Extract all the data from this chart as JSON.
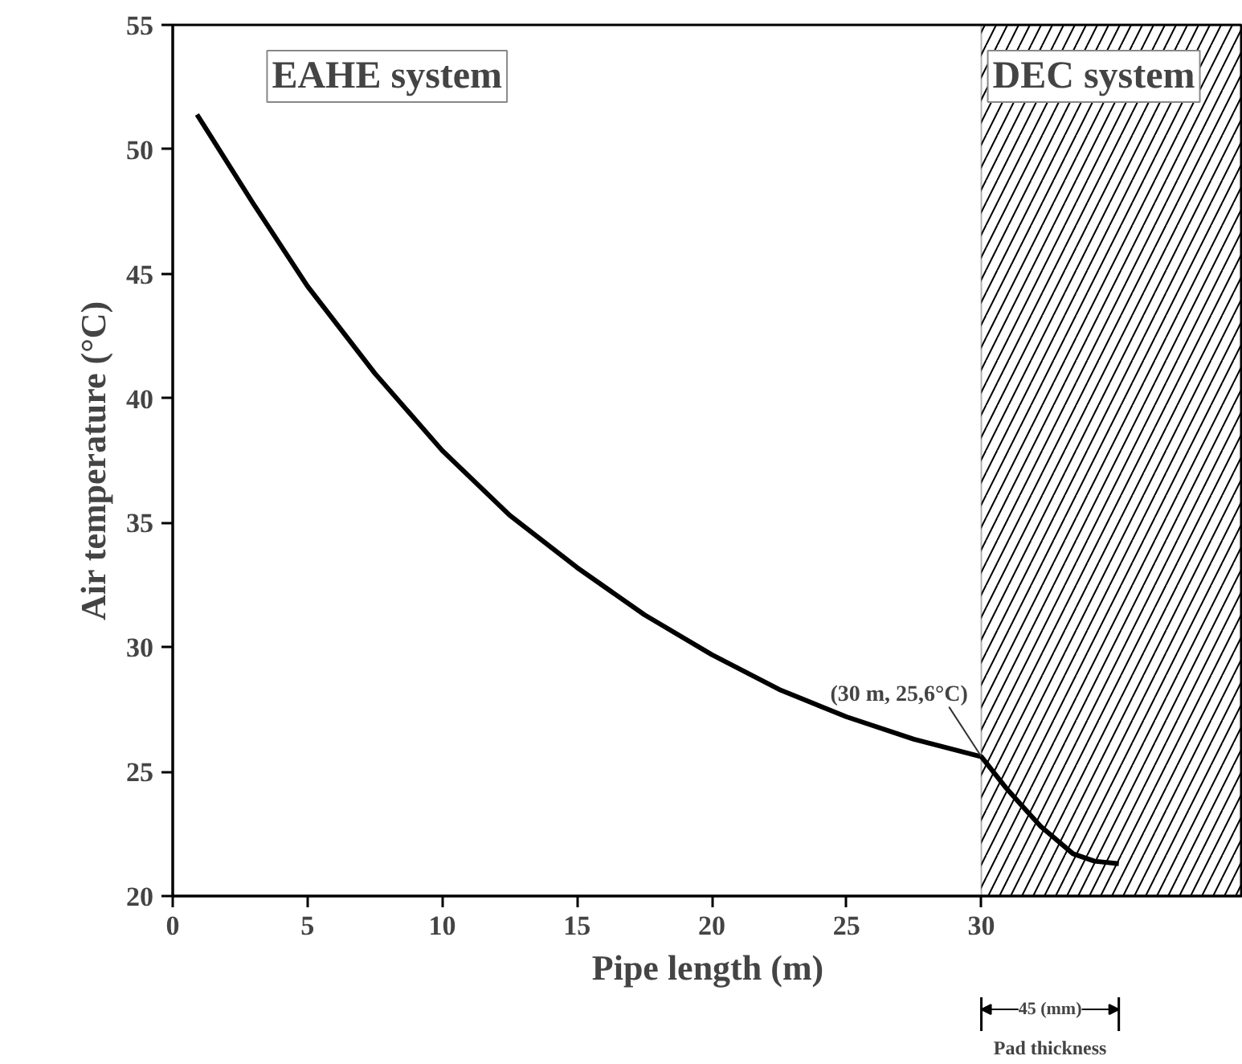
{
  "chart_data": {
    "type": "line",
    "xlabel": "Pipe length (m)",
    "ylabel": "Air temperature (°C)",
    "series": [
      {
        "color": "#000000",
        "x": [
          0.9,
          3,
          5,
          7.5,
          10,
          12.5,
          15,
          17.5,
          20,
          22.5,
          25,
          27.5,
          30,
          30.95,
          32.2,
          33.4,
          34.2,
          35.1
        ],
        "values": [
          51.4,
          47.8,
          44.5,
          41.0,
          37.9,
          35.3,
          33.2,
          31.3,
          29.7,
          28.3,
          27.2,
          26.3,
          25.6,
          24.3,
          22.8,
          21.7,
          21.4,
          21.3
        ]
      }
    ],
    "xlim": [
      0,
      39.7
    ],
    "ylim": [
      20,
      55
    ],
    "xticks": [
      0,
      5,
      10,
      15,
      20,
      25,
      30
    ],
    "yticks": [
      20,
      25,
      30,
      35,
      40,
      45,
      50,
      55
    ],
    "bands": [
      {
        "axis": "x",
        "from": 30,
        "to": 39.7,
        "label": "DEC system",
        "color": "#000000"
      }
    ],
    "annotations": [
      "EAHE system",
      {
        "text": "(30 m, 25,6°C)",
        "x": 30,
        "y": 25.6
      },
      "45 (mm)",
      "Pad thickness"
    ],
    "grid": false,
    "marker": "none",
    "line_style": "solid"
  }
}
